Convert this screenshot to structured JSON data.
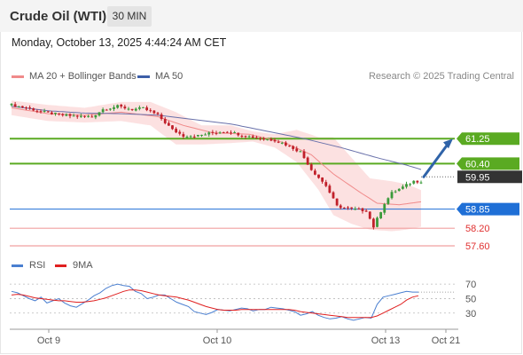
{
  "header": {
    "title": "Crude Oil (WTI)",
    "timeframe": "30 MIN",
    "datetime": "Monday, October 13, 2025 4:44:24 AM CET"
  },
  "legend": {
    "items": [
      {
        "label": "MA 20 + Bollinger Bands",
        "color": "#f08a8a"
      },
      {
        "label": "MA 50",
        "color": "#3d5fa8"
      }
    ],
    "credit": "Research © 2025 Trading Central"
  },
  "colors": {
    "up": "#3a9a3a",
    "down": "#c0202a",
    "ma20": "#f08a8a",
    "ma50": "#6870aa",
    "band": "#fbdcdc",
    "resistance": "#5aaa22",
    "support": "#f0a0a0",
    "pivot": "#1f6fd6",
    "current": "#333333",
    "arrow": "#2f63a8"
  },
  "chart_data": [
    {
      "type": "candlestick",
      "name": "price",
      "ylim": [
        57.45,
        63.1
      ],
      "current_price": "59.95",
      "levels": [
        {
          "label": "61.25",
          "value": 61.25,
          "kind": "resistance"
        },
        {
          "label": "60.40",
          "value": 60.4,
          "kind": "resistance"
        },
        {
          "label": "58.85",
          "value": 58.85,
          "kind": "pivot"
        },
        {
          "label": "58.20",
          "value": 58.2,
          "kind": "support"
        },
        {
          "label": "57.60",
          "value": 57.6,
          "kind": "support"
        }
      ],
      "close_anchors": [
        [
          0,
          62.4
        ],
        [
          4,
          62.3
        ],
        [
          9,
          62.15
        ],
        [
          14,
          62.05
        ],
        [
          19,
          62.0
        ],
        [
          22,
          62.0
        ],
        [
          25,
          62.25
        ],
        [
          29,
          62.35
        ],
        [
          33,
          62.25
        ],
        [
          36,
          62.28
        ],
        [
          40,
          62.05
        ],
        [
          44,
          61.55
        ],
        [
          47,
          61.35
        ],
        [
          51,
          61.35
        ],
        [
          55,
          61.45
        ],
        [
          59,
          61.5
        ],
        [
          64,
          61.35
        ],
        [
          68,
          61.25
        ],
        [
          72,
          61.2
        ],
        [
          75,
          61.05
        ],
        [
          79,
          60.8
        ],
        [
          82,
          60.2
        ],
        [
          86,
          59.65
        ],
        [
          89,
          58.95
        ],
        [
          93,
          58.85
        ],
        [
          97,
          58.8
        ],
        [
          99,
          58.25
        ],
        [
          102,
          59.05
        ],
        [
          104,
          59.4
        ],
        [
          107,
          59.6
        ],
        [
          110,
          59.8
        ]
      ],
      "ma20_anchors": [
        [
          0,
          62.3
        ],
        [
          10,
          62.1
        ],
        [
          20,
          62.05
        ],
        [
          30,
          62.15
        ],
        [
          40,
          62.0
        ],
        [
          47,
          61.7
        ],
        [
          55,
          61.45
        ],
        [
          65,
          61.4
        ],
        [
          75,
          61.1
        ],
        [
          82,
          60.7
        ],
        [
          88,
          60.05
        ],
        [
          95,
          59.45
        ],
        [
          100,
          59.05
        ],
        [
          106,
          59.0
        ],
        [
          112,
          59.1
        ]
      ],
      "band_anchors": [
        [
          0,
          62.55,
          62.05
        ],
        [
          10,
          62.4,
          61.85
        ],
        [
          20,
          62.3,
          61.8
        ],
        [
          30,
          62.5,
          61.85
        ],
        [
          38,
          62.5,
          61.7
        ],
        [
          45,
          62.15,
          61.05
        ],
        [
          52,
          61.7,
          61.05
        ],
        [
          60,
          61.7,
          61.1
        ],
        [
          66,
          61.5,
          61.15
        ],
        [
          72,
          61.4,
          60.95
        ],
        [
          78,
          61.55,
          60.45
        ],
        [
          84,
          61.3,
          59.5
        ],
        [
          88,
          61.3,
          58.65
        ],
        [
          93,
          60.6,
          58.35
        ],
        [
          98,
          59.9,
          58.15
        ],
        [
          104,
          59.8,
          58.1
        ],
        [
          108,
          59.7,
          58.15
        ],
        [
          112,
          59.5,
          58.25
        ]
      ],
      "ma50_anchors": [
        [
          0,
          62.35
        ],
        [
          10,
          62.2
        ],
        [
          20,
          62.12
        ],
        [
          30,
          62.1
        ],
        [
          40,
          62.05
        ],
        [
          50,
          61.9
        ],
        [
          60,
          61.75
        ],
        [
          70,
          61.5
        ],
        [
          80,
          61.25
        ],
        [
          90,
          60.95
        ],
        [
          100,
          60.6
        ],
        [
          108,
          60.35
        ],
        [
          112,
          60.2
        ]
      ],
      "forecast_arrow": {
        "from": 59.95,
        "to": 61.25
      }
    },
    {
      "type": "line",
      "name": "RSI",
      "ylim": [
        15,
        80
      ],
      "y_ticks": [
        "70",
        "50",
        "30"
      ],
      "x_ticks": [
        "Oct 9",
        "Oct 10",
        "Oct 13",
        "Oct 21"
      ],
      "series": [
        {
          "name": "RSI",
          "color": "#4a7fd0",
          "values": [
            60,
            58,
            54,
            50,
            47,
            52,
            44,
            47,
            50,
            44,
            40,
            38,
            43,
            48,
            54,
            58,
            64,
            68,
            70,
            68,
            67,
            60,
            57,
            50,
            52,
            55,
            55,
            50,
            45,
            42,
            39,
            32,
            30,
            28,
            31,
            35,
            34,
            33,
            35,
            37,
            36,
            33,
            35,
            35,
            38,
            37,
            36,
            34,
            32,
            27,
            29,
            32,
            27,
            24,
            22,
            23,
            25,
            22,
            20,
            22,
            24,
            23,
            42,
            52,
            54,
            56,
            58,
            60,
            59,
            59
          ]
        },
        {
          "name": "9MA",
          "color": "#e02020",
          "values": [
            55,
            56,
            55,
            53,
            51,
            50,
            49,
            48,
            47,
            47,
            46,
            45,
            45,
            46,
            47,
            49,
            51,
            54,
            57,
            60,
            62,
            62,
            61,
            59,
            57,
            55,
            54,
            53,
            52,
            50,
            48,
            45,
            42,
            39,
            37,
            35,
            34,
            34,
            34,
            35,
            35,
            35,
            35,
            35,
            35,
            35,
            35,
            35,
            34,
            32,
            31,
            30,
            29,
            28,
            27,
            26,
            25,
            24,
            24,
            24,
            24,
            24,
            26,
            30,
            34,
            38,
            42,
            48,
            52,
            54
          ]
        }
      ]
    }
  ]
}
